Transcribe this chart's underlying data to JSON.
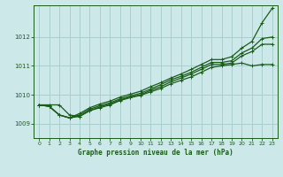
{
  "title": "Graphe pression niveau de la mer (hPa)",
  "background_color": "#cce8e8",
  "grid_color": "#aacfcf",
  "line_colors": [
    "#1a5c1a",
    "#1a5c1a",
    "#1a5c1a",
    "#1a5c1a"
  ],
  "xlim": [
    -0.5,
    23.5
  ],
  "ylim": [
    1008.5,
    1013.1
  ],
  "yticks": [
    1009,
    1010,
    1011,
    1012
  ],
  "xticks": [
    0,
    1,
    2,
    3,
    4,
    5,
    6,
    7,
    8,
    9,
    10,
    11,
    12,
    13,
    14,
    15,
    16,
    17,
    18,
    19,
    20,
    21,
    22,
    23
  ],
  "series": [
    [
      1009.65,
      1009.65,
      1009.65,
      1009.3,
      1009.25,
      1009.45,
      1009.55,
      1009.65,
      1009.8,
      1009.9,
      1009.98,
      1010.1,
      1010.22,
      1010.38,
      1010.5,
      1010.62,
      1010.78,
      1010.95,
      1011.0,
      1011.05,
      1011.1,
      1011.0,
      1011.05,
      1011.05
    ],
    [
      1009.65,
      1009.6,
      1009.3,
      1009.2,
      1009.25,
      1009.45,
      1009.58,
      1009.68,
      1009.82,
      1009.92,
      1010.0,
      1010.15,
      1010.28,
      1010.45,
      1010.58,
      1010.72,
      1010.88,
      1011.05,
      1011.05,
      1011.1,
      1011.35,
      1011.5,
      1011.75,
      1011.75
    ],
    [
      1009.65,
      1009.6,
      1009.3,
      1009.2,
      1009.3,
      1009.5,
      1009.62,
      1009.72,
      1009.86,
      1009.96,
      1010.05,
      1010.2,
      1010.35,
      1010.52,
      1010.64,
      1010.78,
      1010.95,
      1011.12,
      1011.12,
      1011.18,
      1011.45,
      1011.62,
      1011.95,
      1012.0
    ],
    [
      1009.65,
      1009.6,
      1009.3,
      1009.2,
      1009.35,
      1009.55,
      1009.68,
      1009.78,
      1009.92,
      1010.02,
      1010.12,
      1010.28,
      1010.42,
      1010.58,
      1010.72,
      1010.88,
      1011.05,
      1011.22,
      1011.22,
      1011.32,
      1011.62,
      1011.85,
      1012.5,
      1013.0
    ]
  ]
}
